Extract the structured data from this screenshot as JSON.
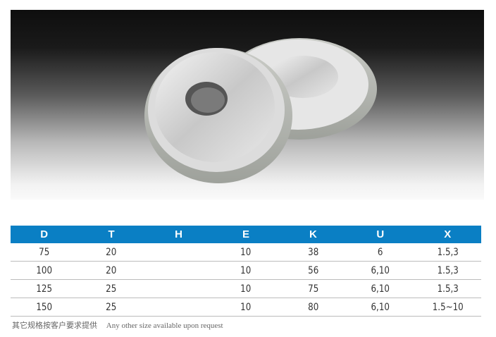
{
  "table": {
    "headers": [
      "D",
      "T",
      "H",
      "E",
      "K",
      "U",
      "X"
    ],
    "rows": [
      [
        "75",
        "20",
        "",
        "10",
        "38",
        "6",
        "1.5,3"
      ],
      [
        "100",
        "20",
        "",
        "10",
        "56",
        "6,10",
        "1.5,3"
      ],
      [
        "125",
        "25",
        "",
        "10",
        "75",
        "6,10",
        "1.5,3"
      ],
      [
        "150",
        "25",
        "",
        "10",
        "80",
        "6,10",
        "1.5~10"
      ]
    ],
    "header_color": "#0a7fc4"
  },
  "note": {
    "chinese": "其它规格按客户要求提供",
    "english": "Any other size available upon request"
  }
}
